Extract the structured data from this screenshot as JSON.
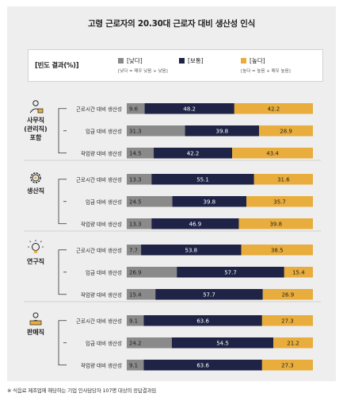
{
  "chart_data": {
    "type": "bar",
    "stacked": true,
    "orientation": "horizontal",
    "title": "고령 근로자의 20.30대 근로자 대비 생산성 인식",
    "legend": {
      "title": "[빈도 결과(%)]",
      "position": "top",
      "entries": [
        {
          "name": "[낮다]",
          "note": "[낮다 = 매우 낮음 + 낮음]",
          "color": "#8a8a8a"
        },
        {
          "name": "[보통]",
          "note": "",
          "color": "#1f2346"
        },
        {
          "name": "[높다]",
          "note": "[높다 = 높음 + 매우 높음]",
          "color": "#e8ad3c"
        }
      ]
    },
    "xlim": [
      0,
      100
    ],
    "groups": [
      {
        "name": "사무직\n(관리직)\n포함",
        "icon": "office-worker-icon",
        "rows": [
          {
            "label": "근로시간 대비 생산성",
            "values": [
              9.6,
              48.2,
              42.2
            ]
          },
          {
            "label": "임금 대비 생산성",
            "values": [
              31.3,
              39.8,
              28.9
            ]
          },
          {
            "label": "작업량 대비 생산성",
            "values": [
              14.5,
              42.2,
              43.4
            ]
          }
        ]
      },
      {
        "name": "생산직",
        "icon": "gear-icon",
        "rows": [
          {
            "label": "근로시간 대비 생산성",
            "values": [
              13.3,
              55.1,
              31.6
            ]
          },
          {
            "label": "임금 대비 생산성",
            "values": [
              24.5,
              39.8,
              35.7
            ]
          },
          {
            "label": "작업량 대비 생산성",
            "values": [
              13.3,
              46.9,
              39.8
            ]
          }
        ]
      },
      {
        "name": "연구직",
        "icon": "lightbulb-icon",
        "rows": [
          {
            "label": "근로시간 대비 생산성",
            "values": [
              7.7,
              53.8,
              38.5
            ]
          },
          {
            "label": "임금 대비 생산성",
            "values": [
              26.9,
              57.7,
              15.4
            ]
          },
          {
            "label": "작업량 대비 생산성",
            "values": [
              15.4,
              57.7,
              26.9
            ]
          }
        ]
      },
      {
        "name": "판매직",
        "icon": "sales-cart-icon",
        "rows": [
          {
            "label": "근로시간 대비 생산성",
            "values": [
              9.1,
              63.6,
              27.3
            ]
          },
          {
            "label": "임금 대비 생산성",
            "values": [
              24.2,
              54.5,
              21.2
            ]
          },
          {
            "label": "작업량 대비 생산성",
            "values": [
              9.1,
              63.6,
              27.3
            ]
          }
        ]
      }
    ]
  },
  "footnote": "※ 식음료 제조업에 해당하는 기업 인사담당자 107명 대상의 응답결과임"
}
